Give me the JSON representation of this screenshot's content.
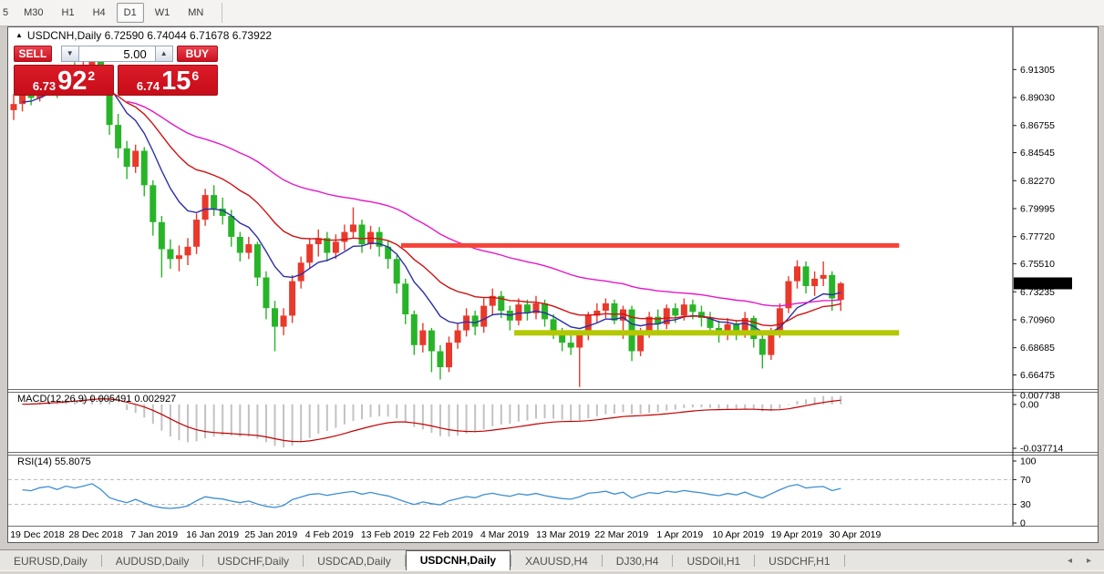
{
  "toolbar": {
    "timeframes": [
      "5",
      "M30",
      "H1",
      "H4",
      "D1",
      "W1",
      "MN"
    ],
    "active": "D1"
  },
  "chart": {
    "header_text": "USDCNH,Daily  6.72590 6.74044 6.71678 6.73922",
    "symbol": "USDCNH,Daily"
  },
  "trade_panel": {
    "sell_label": "SELL",
    "buy_label": "BUY",
    "volume": "5.00",
    "sell_price": {
      "small": "6.73",
      "big": "92",
      "sup": "2"
    },
    "buy_price": {
      "small": "6.74",
      "big": "15",
      "sup": "6"
    }
  },
  "macd_panel": {
    "label": "MACD(12,26,9) 0.005491 0.002927"
  },
  "rsi_panel": {
    "label": "RSI(14) 55.8075"
  },
  "price_axis": {
    "ticks": [
      {
        "price": 6.91305,
        "label": "6.91305"
      },
      {
        "price": 6.8903,
        "label": "6.89030"
      },
      {
        "price": 6.86755,
        "label": "6.86755"
      },
      {
        "price": 6.84545,
        "label": "6.84545"
      },
      {
        "price": 6.8227,
        "label": "6.82270"
      },
      {
        "price": 6.79995,
        "label": "6.79995"
      },
      {
        "price": 6.7772,
        "label": "6.77720"
      },
      {
        "price": 6.7551,
        "label": "6.75510"
      },
      {
        "price": 6.73235,
        "label": "6.73235"
      },
      {
        "price": 6.7096,
        "label": "6.70960"
      },
      {
        "price": 6.68685,
        "label": "6.68685"
      },
      {
        "price": 6.66475,
        "label": "6.66475"
      }
    ],
    "current": {
      "price": 6.73922,
      "label": "6.73922"
    }
  },
  "macd_axis": [
    {
      "value": 0.007738,
      "label": "0.007738"
    },
    {
      "value": 0.0,
      "label": "0.00"
    },
    {
      "value": -0.037714,
      "label": "-0.037714"
    }
  ],
  "rsi_axis": [
    {
      "value": 100,
      "label": "100"
    },
    {
      "value": 70,
      "label": "70"
    },
    {
      "value": 30,
      "label": "30"
    },
    {
      "value": 0,
      "label": "0"
    }
  ],
  "date_axis": [
    "19 Dec 2018",
    "28 Dec 2018",
    "7 Jan 2019",
    "16 Jan 2019",
    "25 Jan 2019",
    "4 Feb 2019",
    "13 Feb 2019",
    "22 Feb 2019",
    "4 Mar 2019",
    "13 Mar 2019",
    "22 Mar 2019",
    "1 Apr 2019",
    "10 Apr 2019",
    "19 Apr 2019",
    "30 Apr 2019"
  ],
  "tabs": {
    "items": [
      "EURUSD,Daily",
      "AUDUSD,Daily",
      "USDCHF,Daily",
      "USDCAD,Daily",
      "USDCNH,Daily",
      "XAUUSD,H4",
      "DJ30,H4",
      "USDOil,H1",
      "USDCHF,H1"
    ],
    "active": "USDCNH,Daily"
  },
  "colors": {
    "candle_up": "#e8392b",
    "candle_down": "#28b428",
    "ma_fast": "#2b2fa8",
    "ma_mid": "#cf1212",
    "ma_slow": "#e517c9",
    "macd_hist": "#c2c2c2",
    "macd_signal": "#c40000",
    "rsi_line": "#3d8ed2",
    "band_resistance": "#f4443a",
    "band_support": "#b4c800",
    "trade_red": "#d8141f"
  },
  "chart_data": {
    "type": "candlestick",
    "symbol": "USDCNH",
    "timeframe": "Daily",
    "title": "USDCNH,Daily",
    "last_bar": {
      "open": 6.7259,
      "high": 6.74044,
      "low": 6.71678,
      "close": 6.73922
    },
    "x_range": [
      "19 Dec 2018",
      "30 Apr 2019"
    ],
    "y_range": [
      6.655,
      6.935
    ],
    "candles": [
      [
        6.88,
        6.893,
        6.872,
        6.885
      ],
      [
        6.885,
        6.898,
        6.879,
        6.893
      ],
      [
        6.893,
        6.9,
        6.884,
        6.89
      ],
      [
        6.89,
        6.906,
        6.887,
        6.901
      ],
      [
        6.901,
        6.913,
        6.895,
        6.906
      ],
      [
        6.906,
        6.911,
        6.89,
        6.897
      ],
      [
        6.897,
        6.916,
        6.893,
        6.911
      ],
      [
        6.911,
        6.919,
        6.901,
        6.905
      ],
      [
        6.905,
        6.922,
        6.899,
        6.913
      ],
      [
        6.913,
        6.932,
        6.906,
        6.924
      ],
      [
        6.924,
        6.93,
        6.899,
        6.906
      ],
      [
        6.906,
        6.91,
        6.86,
        6.868
      ],
      [
        6.868,
        6.877,
        6.841,
        6.849
      ],
      [
        6.849,
        6.855,
        6.824,
        6.834
      ],
      [
        6.834,
        6.852,
        6.829,
        6.847
      ],
      [
        6.847,
        6.85,
        6.81,
        6.819
      ],
      [
        6.819,
        6.823,
        6.778,
        6.789
      ],
      [
        6.789,
        6.794,
        6.744,
        6.767
      ],
      [
        6.767,
        6.775,
        6.751,
        6.759
      ],
      [
        6.759,
        6.77,
        6.749,
        6.762
      ],
      [
        6.762,
        6.776,
        6.754,
        6.769
      ],
      [
        6.769,
        6.796,
        6.763,
        6.791
      ],
      [
        6.791,
        6.816,
        6.786,
        6.811
      ],
      [
        6.811,
        6.819,
        6.794,
        6.8
      ],
      [
        6.8,
        6.809,
        6.787,
        6.794
      ],
      [
        6.794,
        6.799,
        6.769,
        6.777
      ],
      [
        6.777,
        6.781,
        6.757,
        6.764
      ],
      [
        6.764,
        6.777,
        6.759,
        6.771
      ],
      [
        6.771,
        6.773,
        6.737,
        6.744
      ],
      [
        6.744,
        6.749,
        6.71,
        6.719
      ],
      [
        6.719,
        6.725,
        6.684,
        6.704
      ],
      [
        6.704,
        6.719,
        6.697,
        6.713
      ],
      [
        6.713,
        6.746,
        6.707,
        6.741
      ],
      [
        6.741,
        6.761,
        6.735,
        6.756
      ],
      [
        6.756,
        6.776,
        6.751,
        6.771
      ],
      [
        6.771,
        6.783,
        6.761,
        6.776
      ],
      [
        6.776,
        6.781,
        6.757,
        6.764
      ],
      [
        6.764,
        6.779,
        6.759,
        6.773
      ],
      [
        6.773,
        6.787,
        6.766,
        6.781
      ],
      [
        6.781,
        6.801,
        6.776,
        6.787
      ],
      [
        6.787,
        6.791,
        6.764,
        6.771
      ],
      [
        6.771,
        6.786,
        6.767,
        6.781
      ],
      [
        6.781,
        6.785,
        6.761,
        6.769
      ],
      [
        6.769,
        6.774,
        6.751,
        6.759
      ],
      [
        6.759,
        6.762,
        6.731,
        6.739
      ],
      [
        6.739,
        6.743,
        6.706,
        6.714
      ],
      [
        6.714,
        6.717,
        6.681,
        6.689
      ],
      [
        6.689,
        6.707,
        6.683,
        6.701
      ],
      [
        6.701,
        6.703,
        6.667,
        6.684
      ],
      [
        6.684,
        6.689,
        6.661,
        6.671
      ],
      [
        6.671,
        6.696,
        6.667,
        6.691
      ],
      [
        6.691,
        6.707,
        6.686,
        6.701
      ],
      [
        6.701,
        6.719,
        6.696,
        6.713
      ],
      [
        6.713,
        6.717,
        6.697,
        6.704
      ],
      [
        6.704,
        6.727,
        6.699,
        6.721
      ],
      [
        6.721,
        6.735,
        6.713,
        6.729
      ],
      [
        6.729,
        6.733,
        6.711,
        6.717
      ],
      [
        6.717,
        6.721,
        6.701,
        6.709
      ],
      [
        6.709,
        6.727,
        6.705,
        6.722
      ],
      [
        6.722,
        6.726,
        6.709,
        6.715
      ],
      [
        6.715,
        6.729,
        6.71,
        6.723
      ],
      [
        6.723,
        6.726,
        6.704,
        6.71
      ],
      [
        6.71,
        6.714,
        6.694,
        6.7
      ],
      [
        6.7,
        6.703,
        6.684,
        6.691
      ],
      [
        6.691,
        6.699,
        6.681,
        6.687
      ],
      [
        6.687,
        6.701,
        6.655,
        6.697
      ],
      [
        6.697,
        6.716,
        6.693,
        6.713
      ],
      [
        6.713,
        6.723,
        6.707,
        6.717
      ],
      [
        6.717,
        6.727,
        6.711,
        6.723
      ],
      [
        6.723,
        6.726,
        6.706,
        6.709
      ],
      [
        6.709,
        6.721,
        6.694,
        6.718
      ],
      [
        6.718,
        6.721,
        6.676,
        6.684
      ],
      [
        6.684,
        6.703,
        6.68,
        6.699
      ],
      [
        6.699,
        6.716,
        6.695,
        6.712
      ],
      [
        6.712,
        6.718,
        6.7,
        6.706
      ],
      [
        6.706,
        6.722,
        6.702,
        6.719
      ],
      [
        6.719,
        6.723,
        6.707,
        6.713
      ],
      [
        6.713,
        6.727,
        6.709,
        6.722
      ],
      [
        6.722,
        6.726,
        6.71,
        6.716
      ],
      [
        6.716,
        6.721,
        6.704,
        6.711
      ],
      [
        6.711,
        6.716,
        6.697,
        6.703
      ],
      [
        6.703,
        6.709,
        6.691,
        6.697
      ],
      [
        6.697,
        6.711,
        6.693,
        6.706
      ],
      [
        6.706,
        6.709,
        6.693,
        6.699
      ],
      [
        6.699,
        6.716,
        6.695,
        6.711
      ],
      [
        6.711,
        6.713,
        6.687,
        6.694
      ],
      [
        6.694,
        6.697,
        6.67,
        6.681
      ],
      [
        6.681,
        6.703,
        6.677,
        6.699
      ],
      [
        6.699,
        6.723,
        6.695,
        6.719
      ],
      [
        6.719,
        6.745,
        6.715,
        6.741
      ],
      [
        6.741,
        6.758,
        6.735,
        6.753
      ],
      [
        6.753,
        6.757,
        6.731,
        6.737
      ],
      [
        6.737,
        6.749,
        6.729,
        6.743
      ],
      [
        6.743,
        6.757,
        6.737,
        6.746
      ],
      [
        6.746,
        6.749,
        6.717,
        6.727
      ],
      [
        6.7259,
        6.7404,
        6.7168,
        6.7392
      ]
    ],
    "moving_averages": [
      {
        "name": "fast",
        "period": 9,
        "color_key": "ma_fast",
        "start": 1
      },
      {
        "name": "mid",
        "period": 21,
        "color_key": "ma_mid",
        "start": 9
      },
      {
        "name": "slow",
        "period": 48,
        "color_key": "ma_slow",
        "start": 13
      }
    ],
    "hlines": [
      {
        "name": "resistance",
        "price": 6.77,
        "from_bar": 44.5,
        "to_bar": 101.7,
        "thickness": 5,
        "color_key": "band_resistance"
      },
      {
        "name": "support",
        "price": 6.699,
        "from_bar": 57.5,
        "to_bar": 101.7,
        "thickness": 6,
        "color_key": "band_support"
      }
    ],
    "indicators": {
      "macd": {
        "fast": 12,
        "slow": 26,
        "signal": 9,
        "value": 0.005491,
        "signal_value": 0.002927,
        "axis_max": 0.007738,
        "axis_min": -0.037714
      },
      "rsi": {
        "period": 14,
        "value": 55.8075,
        "levels": [
          70,
          30
        ]
      }
    }
  }
}
